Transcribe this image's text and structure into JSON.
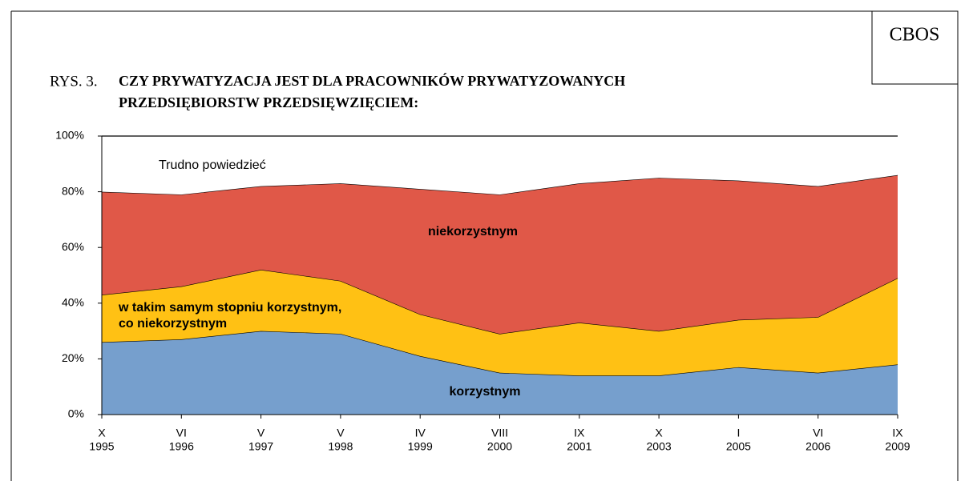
{
  "header": {
    "logo": "CBOS",
    "figure_number": "RYS. 3.",
    "title_lines": [
      "CZY PRYWATYZACJA JEST DLA PRACOWNIKÓW PRYWATYZOWANYCH",
      "PRZEDSIĘBIORSTW PRZEDSIĘWZIĘCIEM:"
    ]
  },
  "chart_data": {
    "type": "stacked_area",
    "categories": [
      [
        "X",
        "1995"
      ],
      [
        "VI",
        "1996"
      ],
      [
        "V",
        "1997"
      ],
      [
        "V",
        "1998"
      ],
      [
        "IV",
        "1999"
      ],
      [
        "VIII",
        "2000"
      ],
      [
        "IX",
        "2001"
      ],
      [
        "X",
        "2003"
      ],
      [
        "I",
        "2005"
      ],
      [
        "VI",
        "2006"
      ],
      [
        "IX",
        "2009"
      ]
    ],
    "series": [
      {
        "name": [
          "korzystnym"
        ],
        "color": "#769fcd",
        "values": [
          26,
          27,
          30,
          29,
          21,
          15,
          14,
          14,
          17,
          15,
          18
        ]
      },
      {
        "name": [
          "w takim samym stopniu korzystnym,",
          "co niekorzystnym"
        ],
        "color": "#ffc114",
        "values": [
          17,
          19,
          22,
          19,
          15,
          14,
          19,
          16,
          17,
          20,
          31
        ]
      },
      {
        "name": [
          "niekorzystnym"
        ],
        "color": "#e05848",
        "values": [
          37,
          33,
          30,
          35,
          45,
          50,
          50,
          55,
          50,
          47,
          37
        ]
      },
      {
        "name": [
          "Trudno powiedzieć"
        ],
        "color": "#ffffff",
        "values": [
          20,
          21,
          18,
          17,
          19,
          21,
          17,
          15,
          16,
          18,
          14
        ]
      }
    ],
    "ylim": [
      0,
      100
    ],
    "yticks": [
      {
        "value": 0,
        "label": "0%"
      },
      {
        "value": 20,
        "label": "20%"
      },
      {
        "value": 40,
        "label": "40%"
      },
      {
        "value": 60,
        "label": "60%"
      },
      {
        "value": 80,
        "label": "80%"
      },
      {
        "value": 100,
        "label": "100%"
      }
    ]
  }
}
